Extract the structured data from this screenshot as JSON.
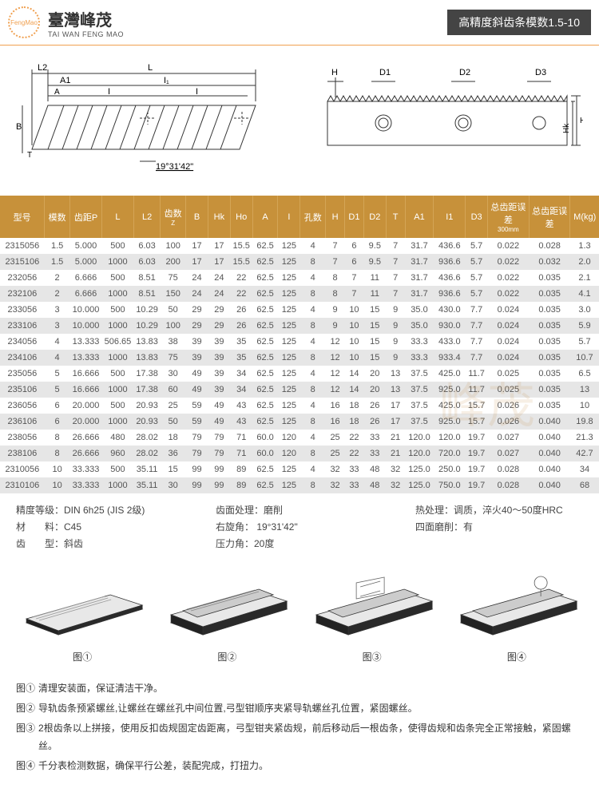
{
  "header": {
    "brand_cn": "臺灣峰茂",
    "brand_en": "TAI WAN FENG MAO",
    "logo_text": "FengMao",
    "title_right": "高精度斜齿条模数1.5-10",
    "accent_color": "#c7913a",
    "header_bg": "#444444"
  },
  "diagram_left": {
    "labels": [
      "L2",
      "L",
      "A1",
      "I₁",
      "A",
      "I",
      "I",
      "B",
      "T"
    ],
    "angle_label": "19°31'42\""
  },
  "diagram_right": {
    "labels": [
      "H",
      "D1",
      "D2",
      "D3",
      "Ho",
      "Hk"
    ]
  },
  "table": {
    "columns": [
      "型号",
      "模数",
      "齿距P",
      "L",
      "L2",
      "齿数\nZ",
      "B",
      "Hk",
      "Ho",
      "A",
      "I",
      "孔数",
      "H",
      "D1",
      "D2",
      "T",
      "A1",
      "I1",
      "D3",
      "总齿距误差\n300mm",
      "总齿距误差",
      "M(kg)"
    ],
    "rows": [
      [
        "2315056",
        "1.5",
        "5.000",
        "500",
        "6.03",
        "100",
        "17",
        "17",
        "15.5",
        "62.5",
        "125",
        "4",
        "7",
        "6",
        "9.5",
        "7",
        "31.7",
        "436.6",
        "5.7",
        "0.022",
        "0.028",
        "1.3"
      ],
      [
        "2315106",
        "1.5",
        "5.000",
        "1000",
        "6.03",
        "200",
        "17",
        "17",
        "15.5",
        "62.5",
        "125",
        "8",
        "7",
        "6",
        "9.5",
        "7",
        "31.7",
        "936.6",
        "5.7",
        "0.022",
        "0.032",
        "2.0"
      ],
      [
        "232056",
        "2",
        "6.666",
        "500",
        "8.51",
        "75",
        "24",
        "24",
        "22",
        "62.5",
        "125",
        "4",
        "8",
        "7",
        "11",
        "7",
        "31.7",
        "436.6",
        "5.7",
        "0.022",
        "0.035",
        "2.1"
      ],
      [
        "232106",
        "2",
        "6.666",
        "1000",
        "8.51",
        "150",
        "24",
        "24",
        "22",
        "62.5",
        "125",
        "8",
        "8",
        "7",
        "11",
        "7",
        "31.7",
        "936.6",
        "5.7",
        "0.022",
        "0.035",
        "4.1"
      ],
      [
        "233056",
        "3",
        "10.000",
        "500",
        "10.29",
        "50",
        "29",
        "29",
        "26",
        "62.5",
        "125",
        "4",
        "9",
        "10",
        "15",
        "9",
        "35.0",
        "430.0",
        "7.7",
        "0.024",
        "0.035",
        "3.0"
      ],
      [
        "233106",
        "3",
        "10.000",
        "1000",
        "10.29",
        "100",
        "29",
        "29",
        "26",
        "62.5",
        "125",
        "8",
        "9",
        "10",
        "15",
        "9",
        "35.0",
        "930.0",
        "7.7",
        "0.024",
        "0.035",
        "5.9"
      ],
      [
        "234056",
        "4",
        "13.333",
        "506.65",
        "13.83",
        "38",
        "39",
        "39",
        "35",
        "62.5",
        "125",
        "4",
        "12",
        "10",
        "15",
        "9",
        "33.3",
        "433.0",
        "7.7",
        "0.024",
        "0.035",
        "5.7"
      ],
      [
        "234106",
        "4",
        "13.333",
        "1000",
        "13.83",
        "75",
        "39",
        "39",
        "35",
        "62.5",
        "125",
        "8",
        "12",
        "10",
        "15",
        "9",
        "33.3",
        "933.4",
        "7.7",
        "0.024",
        "0.035",
        "10.7"
      ],
      [
        "235056",
        "5",
        "16.666",
        "500",
        "17.38",
        "30",
        "49",
        "39",
        "34",
        "62.5",
        "125",
        "4",
        "12",
        "14",
        "20",
        "13",
        "37.5",
        "425.0",
        "11.7",
        "0.025",
        "0.035",
        "6.5"
      ],
      [
        "235106",
        "5",
        "16.666",
        "1000",
        "17.38",
        "60",
        "49",
        "39",
        "34",
        "62.5",
        "125",
        "8",
        "12",
        "14",
        "20",
        "13",
        "37.5",
        "925.0",
        "11.7",
        "0.025",
        "0.035",
        "13"
      ],
      [
        "236056",
        "6",
        "20.000",
        "500",
        "20.93",
        "25",
        "59",
        "49",
        "43",
        "62.5",
        "125",
        "4",
        "16",
        "18",
        "26",
        "17",
        "37.5",
        "425.0",
        "15.7",
        "0.026",
        "0.035",
        "10"
      ],
      [
        "236106",
        "6",
        "20.000",
        "1000",
        "20.93",
        "50",
        "59",
        "49",
        "43",
        "62.5",
        "125",
        "8",
        "16",
        "18",
        "26",
        "17",
        "37.5",
        "925.0",
        "15.7",
        "0.026",
        "0.040",
        "19.8"
      ],
      [
        "238056",
        "8",
        "26.666",
        "480",
        "28.02",
        "18",
        "79",
        "79",
        "71",
        "60.0",
        "120",
        "4",
        "25",
        "22",
        "33",
        "21",
        "120.0",
        "120.0",
        "19.7",
        "0.027",
        "0.040",
        "21.3"
      ],
      [
        "238106",
        "8",
        "26.666",
        "960",
        "28.02",
        "36",
        "79",
        "79",
        "71",
        "60.0",
        "120",
        "8",
        "25",
        "22",
        "33",
        "21",
        "120.0",
        "720.0",
        "19.7",
        "0.027",
        "0.040",
        "42.7"
      ],
      [
        "2310056",
        "10",
        "33.333",
        "500",
        "35.11",
        "15",
        "99",
        "99",
        "89",
        "62.5",
        "125",
        "4",
        "32",
        "33",
        "48",
        "32",
        "125.0",
        "250.0",
        "19.7",
        "0.028",
        "0.040",
        "34"
      ],
      [
        "2310106",
        "10",
        "33.333",
        "1000",
        "35.11",
        "30",
        "99",
        "99",
        "89",
        "62.5",
        "125",
        "8",
        "32",
        "33",
        "48",
        "32",
        "125.0",
        "750.0",
        "19.7",
        "0.028",
        "0.040",
        "68"
      ]
    ],
    "header_bg": "#c7913a",
    "header_text": "#ffffff",
    "row_even_bg": "#e6e6e6",
    "row_odd_bg": "#ffffff",
    "col_widths_pct": [
      7,
      4,
      5,
      5,
      4,
      4,
      3.5,
      3.5,
      3.5,
      4,
      3.5,
      4,
      3,
      3,
      3.5,
      3,
      4.5,
      5,
      3.5,
      6.5,
      6.5,
      4.5
    ]
  },
  "specs": {
    "col1": [
      {
        "label": "精度等级",
        "value": "：DIN 6h25 (JIS 2级)"
      },
      {
        "label": "材　　料",
        "value": "：C45"
      },
      {
        "label": "齿　　型",
        "value": "：斜齿"
      }
    ],
    "col2": [
      {
        "label": "齿面处理",
        "value": "：磨削"
      },
      {
        "label": "右旋角",
        "value": "： 19°31'42\""
      },
      {
        "label": "压力角",
        "value": "：20度"
      }
    ],
    "col3": [
      {
        "label": "热处理",
        "value": "：调质，淬火40～50度HRC"
      },
      {
        "label": "四面磨削",
        "value": "：有"
      }
    ]
  },
  "figures": {
    "labels": [
      "图①",
      "图②",
      "图③",
      "图④"
    ]
  },
  "notes": [
    {
      "label": "图①",
      "text": "清理安装面，保证清洁干净。"
    },
    {
      "label": "图②",
      "text": "导轨齿条预紧螺丝,让螺丝在螺丝孔中间位置,弓型钳顺序夹紧导轨螺丝孔位置，紧固螺丝。"
    },
    {
      "label": "图③",
      "text": "2根齿条以上拼接，使用反扣齿规固定齿距离，弓型钳夹紧齿规，前后移动后一根齿条，使得齿规和齿条完全正常接触，紧固螺丝。"
    },
    {
      "label": "图④",
      "text": "千分表检测数据，确保平行公差，装配完成，打扭力。"
    }
  ],
  "watermark": "峰茂"
}
